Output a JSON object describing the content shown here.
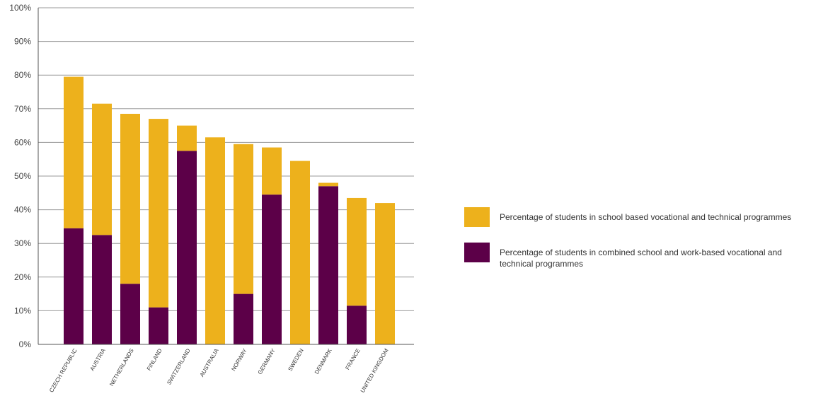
{
  "chart_data": {
    "type": "bar",
    "stacked": true,
    "categories": [
      "CZECH REPUBLIC",
      "AUSTRIA",
      "NETHERLANDS",
      "FINLAND",
      "SWITZERLAND",
      "AUSTRALIA",
      "NORWAY",
      "GERMANY",
      "SWEDEN",
      "DENMARK",
      "FRANCE",
      "UNITED KINGDOM"
    ],
    "series": [
      {
        "name": "Percentage of students in combined school and work-based vocational and technical programmes",
        "color": "#5c0048",
        "values": [
          34.5,
          32.5,
          18,
          11,
          57.5,
          0,
          15,
          44.5,
          0,
          47,
          11.5,
          0
        ]
      },
      {
        "name": "Percentage of students in school based vocational and technical programmes",
        "color": "#edb11c",
        "values": [
          45,
          39,
          50.5,
          56,
          7.5,
          61.5,
          44.5,
          14,
          54.5,
          1,
          32,
          42
        ]
      }
    ],
    "y_ticks": [
      "0%",
      "10%",
      "20%",
      "30%",
      "40%",
      "50%",
      "60%",
      "70%",
      "80%",
      "90%",
      "100%"
    ],
    "ylim": [
      0,
      100
    ],
    "grid": true,
    "legend_position": "right"
  },
  "legend": {
    "items": [
      {
        "label": "Percentage of students in school based vocational and technical programmes",
        "color": "#edb11c"
      },
      {
        "label": "Percentage of students in combined school and work-based vocational and technical programmes",
        "color": "#5c0048"
      }
    ]
  }
}
